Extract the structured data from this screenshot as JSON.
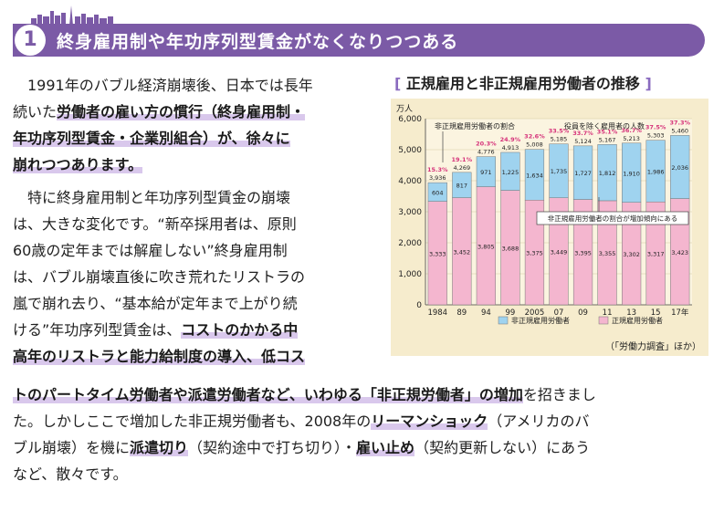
{
  "section": {
    "number": "1",
    "title": "終身雇用制や年功序列型賃金がなくなりつつある"
  },
  "body": {
    "lines": [
      [
        {
          "t": "　1991年のバブル経済崩壊後、日本では長年",
          "h": false
        }
      ],
      [
        {
          "t": "続いた",
          "h": false
        },
        {
          "t": "労働者の雇い方の慣行（終身雇用制・",
          "h": true
        }
      ],
      [
        {
          "t": "年功序列型賃金・企業別組合）が、徐々に",
          "h": true
        }
      ],
      [
        {
          "t": "崩れつつあります。",
          "h": true
        }
      ],
      [
        {
          "t": "　特に終身雇用制と年功序列型賃金の崩壊",
          "h": false
        }
      ],
      [
        {
          "t": "は、大きな変化です。“新卒採用者は、原則",
          "h": false
        }
      ],
      [
        {
          "t": "60歳の定年までは解雇しない”終身雇用制",
          "h": false
        }
      ],
      [
        {
          "t": "は、バブル崩壊直後に吹き荒れたリストラの",
          "h": false
        }
      ],
      [
        {
          "t": "嵐で崩れ去り、“基本給が定年まで上がり続",
          "h": false
        }
      ],
      [
        {
          "t": "ける”年功序列型賃金は、",
          "h": false
        },
        {
          "t": "コストのかかる中",
          "h": true
        }
      ],
      [
        {
          "t": "高年のリストラと能力給制度の導入、低コス",
          "h": true
        }
      ],
      [
        {
          "t": "トのパートタイム労働者や派遣労働者など、いわゆる「非正規労働者」の増加",
          "h": true
        },
        {
          "t": "を招きまし",
          "h": false
        }
      ],
      [
        {
          "t": "た。しかしここで増加した非正規労働者も、2008年の",
          "h": false
        },
        {
          "t": "リーマンショック",
          "h": true
        },
        {
          "t": "（アメリカのバ",
          "h": false
        }
      ],
      [
        {
          "t": "ブル崩壊）を機に",
          "h": false
        },
        {
          "t": "派遣切り",
          "h": true
        },
        {
          "t": "（契約途中で打ち切り）・",
          "h": false
        },
        {
          "t": "雇い止め",
          "h": true
        },
        {
          "t": "（契約更新しない）にあう",
          "h": false
        }
      ],
      [
        {
          "t": "など、散々です。",
          "h": false
        }
      ]
    ]
  },
  "chart_data": {
    "type": "bar",
    "title": "正規雇用と非正規雇用労働者の推移",
    "unit": "万人",
    "ylim": [
      0,
      6000
    ],
    "yticks": [
      "0",
      "1,000",
      "2,000",
      "3,000",
      "4,000",
      "5,000",
      "6,000"
    ],
    "categories": [
      "1984",
      "89",
      "94",
      "99",
      "2005",
      "07",
      "09",
      "11",
      "13",
      "15",
      "17年"
    ],
    "series": [
      {
        "name": "正規雇用労働者",
        "color": "#f4b6cf",
        "values": [
          3333,
          3452,
          3805,
          3688,
          3375,
          3449,
          3395,
          3355,
          3302,
          3317,
          3423
        ]
      },
      {
        "name": "非正規雇用労働者",
        "color": "#9fd3ef",
        "values": [
          604,
          817,
          971,
          1225,
          1634,
          1735,
          1727,
          1812,
          1910,
          1986,
          2036
        ]
      }
    ],
    "totals": [
      "3,936",
      "4,269",
      "4,776",
      "4,913",
      "5,008",
      "5,185",
      "5,124",
      "5,167",
      "5,213",
      "5,303",
      "5,460"
    ],
    "ratios": [
      "15.3%",
      "19.1%",
      "20.3%",
      "24.9%",
      "32.6%",
      "33.5%",
      "33.7%",
      "35.1%",
      "36.7%",
      "37.5%",
      "37.3%"
    ],
    "annotations": {
      "ratio_label": "非正規雇用労働者の割合",
      "total_label": "役員を除く雇用者の人数",
      "trend_label": "非正規雇用労働者の割合が増加傾向にある"
    },
    "legend": [
      "非正規雇用労働者",
      "正規雇用労働者"
    ],
    "source": "（「労働力調査」ほか）"
  }
}
